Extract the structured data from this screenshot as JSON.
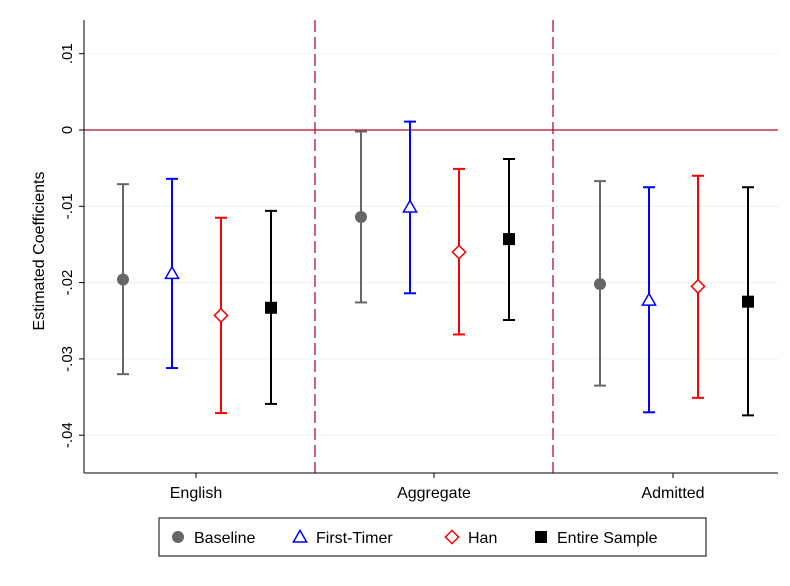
{
  "chart_data": {
    "type": "scatter",
    "subtype": "coefficient-plot-with-confidence-intervals",
    "title": "",
    "xlabel": "",
    "ylabel": "Estimated Coefficients",
    "categories": [
      "English",
      "Aggregate",
      "Admitted"
    ],
    "ylim": [
      -0.045,
      0.013
    ],
    "y_ticks": [
      0.01,
      0,
      -0.01,
      -0.02,
      -0.03,
      -0.04
    ],
    "y_tick_labels": [
      ".01",
      "0",
      "-.01",
      "-.02",
      "-.03",
      "-.04"
    ],
    "grid": true,
    "zero_line": {
      "y": 0,
      "color": "#b2102f"
    },
    "category_separators": {
      "style": "dashed",
      "color": "#b2102f"
    },
    "legend_position": "bottom",
    "series": [
      {
        "name": "Baseline",
        "marker": "circle",
        "color": "#666666",
        "estimates": [
          -0.0196,
          -0.0114,
          -0.0202
        ],
        "ci_low": [
          -0.032,
          -0.0226,
          -0.0335
        ],
        "ci_high": [
          -0.0071,
          -0.0002,
          -0.0067
        ]
      },
      {
        "name": "First-Timer",
        "marker": "triangle",
        "color": "#0000ff",
        "estimates": [
          -0.0188,
          -0.0101,
          -0.0223
        ],
        "ci_low": [
          -0.0312,
          -0.0214,
          -0.037
        ],
        "ci_high": [
          -0.0064,
          0.0011,
          -0.0075
        ]
      },
      {
        "name": "Han",
        "marker": "diamond",
        "color": "#ff0000",
        "estimates": [
          -0.0243,
          -0.016,
          -0.0205
        ],
        "ci_low": [
          -0.0371,
          -0.0268,
          -0.0351
        ],
        "ci_high": [
          -0.0115,
          -0.0051,
          -0.006
        ]
      },
      {
        "name": "Entire Sample",
        "marker": "square",
        "color": "#000000",
        "estimates": [
          -0.0233,
          -0.0143,
          -0.0225
        ],
        "ci_low": [
          -0.0359,
          -0.0249,
          -0.0374
        ],
        "ci_high": [
          -0.0106,
          -0.0038,
          -0.0075
        ]
      }
    ]
  }
}
